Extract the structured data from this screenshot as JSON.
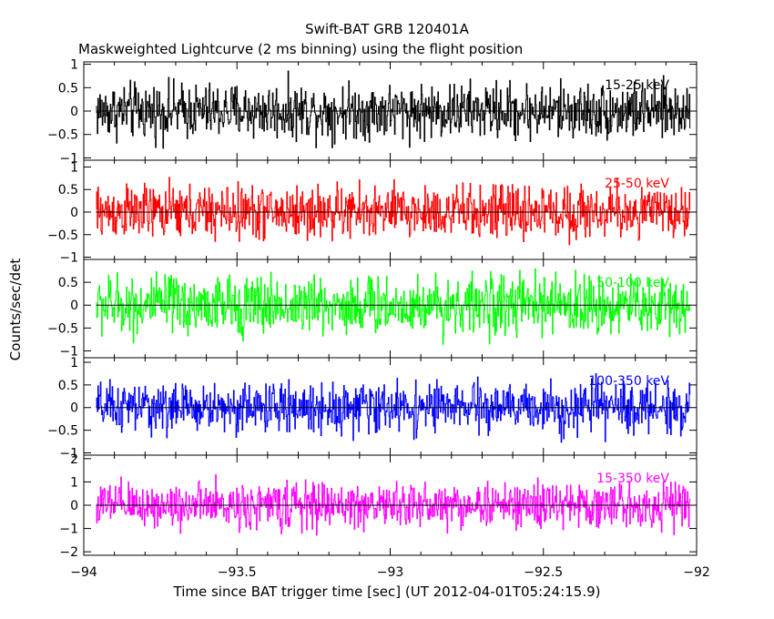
{
  "chart_data": {
    "type": "line",
    "title": "Swift-BAT GRB 120401A",
    "subtitle": "Maskweighted Lightcurve (2 ms binning) using the flight position",
    "xlabel": "Time since BAT trigger time [sec] (UT 2012-04-01T05:24:15.9)",
    "ylabel": "Counts/sec/det",
    "xlim": [
      -94,
      -92
    ],
    "x_ticks": [
      "-94",
      "-93.5",
      "-93",
      "-92.5",
      "-92"
    ],
    "grid": false,
    "panels": [
      {
        "name": "15-25 keV",
        "color": "#000000",
        "ylim": [
          -1.05,
          1.05
        ],
        "y_ticks": [
          "1",
          "0.5",
          "0",
          "-0.5",
          "-1"
        ],
        "amplitude": 0.55
      },
      {
        "name": "25-50 keV",
        "color": "#ff0000",
        "ylim": [
          -1.05,
          1.15
        ],
        "y_ticks": [
          "1",
          "0.5",
          "0",
          "-0.5",
          "-1"
        ],
        "amplitude": 0.55
      },
      {
        "name": "50-100 keV",
        "color": "#00ff00",
        "ylim": [
          -1.15,
          1.0
        ],
        "y_ticks": [
          "0.5",
          "0",
          "-0.5",
          "-1"
        ],
        "amplitude": 0.6
      },
      {
        "name": "100-350 keV",
        "color": "#0000ff",
        "ylim": [
          -1.05,
          1.1
        ],
        "y_ticks": [
          "1",
          "0.5",
          "0",
          "-0.5",
          "-1"
        ],
        "amplitude": 0.5
      },
      {
        "name": "15-350 keV",
        "color": "#ff00ff",
        "ylim": [
          -2.15,
          2.15
        ],
        "y_ticks": [
          "2",
          "1",
          "0",
          "-1",
          "-2"
        ],
        "amplitude": 0.9
      }
    ]
  }
}
